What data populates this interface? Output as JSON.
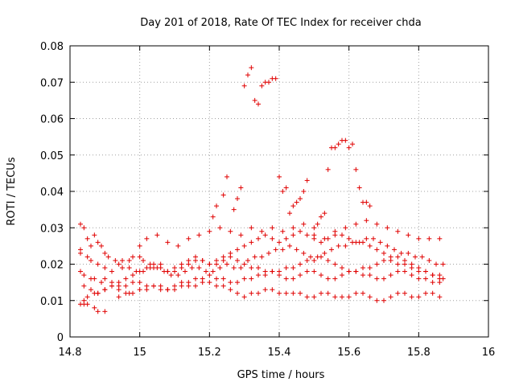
{
  "chart_data": {
    "type": "scatter",
    "title": "Day 201 of 2018, Rate Of TEC Index for receiver chda",
    "xlabel": "GPS time / hours",
    "ylabel": "ROTI / TECUs",
    "xlim": [
      14.8,
      16
    ],
    "ylim": [
      0,
      0.08
    ],
    "xticks": [
      "14.8",
      "15",
      "15.2",
      "15.4",
      "15.6",
      "15.8",
      "16"
    ],
    "yticks": [
      "0",
      "0.01",
      "0.02",
      "0.03",
      "0.04",
      "0.05",
      "0.06",
      "0.07",
      "0.08"
    ],
    "grid": true,
    "marker": "plus",
    "color": "#e00000",
    "series": [
      {
        "x": [
          14.83,
          14.83,
          14.84,
          14.85,
          14.86,
          14.87,
          14.88,
          14.89,
          14.9,
          14.91,
          14.93,
          14.94,
          14.95,
          14.97,
          14.98,
          15.0,
          15.01,
          15.03,
          15.04,
          15.06,
          15.08,
          15.1,
          15.12,
          15.14,
          15.16,
          15.18,
          15.2,
          15.22,
          15.24,
          15.26,
          15.28,
          15.3,
          15.32,
          15.34,
          15.36,
          15.38,
          15.4,
          15.42,
          15.44,
          15.46,
          15.48,
          15.5,
          15.52,
          15.54,
          15.56,
          15.58,
          15.6,
          15.62,
          15.64,
          15.66,
          15.68,
          15.7,
          15.72,
          15.74,
          15.76,
          15.78,
          15.8,
          15.82,
          15.84,
          15.86,
          15.87,
          14.83,
          14.84,
          14.86,
          14.87,
          14.89,
          14.9,
          14.92,
          14.94,
          14.96,
          14.98,
          15.0,
          15.02,
          15.04,
          15.06,
          15.08,
          15.1,
          15.12,
          15.14,
          15.16,
          15.18,
          15.2,
          15.22,
          15.24,
          15.26,
          15.28,
          15.3,
          15.32,
          15.34,
          15.36,
          15.38,
          15.4,
          15.42,
          15.44,
          15.46,
          15.48,
          15.5,
          15.52,
          15.54,
          15.56,
          15.58,
          15.6,
          15.62,
          15.64,
          15.66,
          15.68,
          15.7,
          15.72,
          15.74,
          15.76,
          15.78,
          15.8,
          15.82,
          15.84,
          15.86,
          14.83,
          14.84,
          14.85,
          14.87,
          14.88,
          14.9,
          14.92,
          14.94,
          14.96,
          14.98,
          15.0,
          15.02,
          15.04,
          15.06,
          15.08,
          15.1,
          15.12,
          15.14,
          15.16,
          15.18,
          15.2,
          15.22,
          15.24,
          15.26,
          15.28,
          15.3,
          15.32,
          15.34,
          15.36,
          15.38,
          15.4,
          15.42,
          15.44,
          15.46,
          15.48,
          15.5,
          15.52,
          15.54,
          15.56,
          15.58,
          15.6,
          15.62,
          15.64,
          15.66,
          15.68,
          15.7,
          15.72,
          15.74,
          15.76,
          15.78,
          15.8,
          15.82,
          15.84,
          15.86,
          14.83,
          14.85,
          14.86,
          14.88,
          14.9,
          14.92,
          14.95,
          14.97,
          14.99,
          15.01,
          15.03,
          15.05,
          15.07,
          15.09,
          15.11,
          15.13,
          15.15,
          15.17,
          15.19,
          15.21,
          15.23,
          15.25,
          15.27,
          15.29,
          15.31,
          15.33,
          15.35,
          15.37,
          15.39,
          15.41,
          15.43,
          15.45,
          15.47,
          15.49,
          15.51,
          15.53,
          15.55,
          15.57,
          15.59,
          15.61,
          15.63,
          15.65,
          15.67,
          15.69,
          15.71,
          15.73,
          15.75,
          15.77,
          15.79,
          15.81,
          15.83,
          15.85,
          15.87,
          14.84,
          14.86,
          14.88,
          14.9,
          14.92,
          14.94,
          14.96,
          14.98,
          15.0,
          15.02,
          15.04,
          15.06,
          15.08,
          15.1,
          15.12,
          15.14,
          15.16,
          15.18,
          15.2,
          15.22,
          15.24,
          15.26,
          15.28,
          15.3,
          15.32,
          15.34,
          15.36,
          15.38,
          15.4,
          15.42,
          15.44,
          15.46,
          15.48,
          15.5,
          15.52,
          15.54,
          15.56,
          15.58,
          15.6,
          15.62,
          15.64,
          15.66,
          15.68,
          15.7,
          15.72,
          15.74,
          15.76,
          15.78,
          15.8,
          15.82,
          15.84,
          15.86,
          14.84,
          14.85,
          14.87,
          14.88,
          14.9,
          14.94,
          14.97,
          15.0,
          15.02,
          15.05,
          15.08,
          15.11,
          15.14,
          15.17,
          15.2,
          15.23,
          15.26,
          15.29,
          15.32,
          15.35,
          15.38,
          15.41,
          15.44,
          15.47,
          15.5,
          15.53,
          15.56,
          15.59,
          15.62,
          15.65,
          15.68,
          15.71,
          15.74,
          15.77,
          15.8,
          15.83,
          15.86,
          15.21,
          15.22,
          15.24,
          15.25,
          15.27,
          15.28,
          15.29,
          15.3,
          15.31,
          15.32,
          15.33,
          15.34,
          15.35,
          15.36,
          15.37,
          15.38,
          15.39,
          15.4,
          15.41,
          15.42,
          15.43,
          15.44,
          15.45,
          15.46,
          15.47,
          15.48,
          15.5,
          15.51,
          15.52,
          15.53,
          15.54,
          15.55,
          15.56,
          15.57,
          15.58,
          15.59,
          15.6,
          15.61,
          15.62,
          15.63,
          15.64,
          15.65,
          15.66
        ],
        "y": [
          0.031,
          0.024,
          0.03,
          0.027,
          0.025,
          0.028,
          0.026,
          0.025,
          0.023,
          0.022,
          0.021,
          0.02,
          0.021,
          0.021,
          0.022,
          0.022,
          0.021,
          0.02,
          0.019,
          0.02,
          0.018,
          0.018,
          0.019,
          0.02,
          0.021,
          0.021,
          0.02,
          0.02,
          0.021,
          0.022,
          0.021,
          0.02,
          0.019,
          0.019,
          0.018,
          0.018,
          0.018,
          0.019,
          0.019,
          0.02,
          0.021,
          0.021,
          0.022,
          0.021,
          0.02,
          0.019,
          0.018,
          0.018,
          0.019,
          0.019,
          0.02,
          0.021,
          0.021,
          0.02,
          0.02,
          0.019,
          0.018,
          0.018,
          0.017,
          0.017,
          0.016,
          0.018,
          0.017,
          0.016,
          0.016,
          0.015,
          0.016,
          0.015,
          0.014,
          0.014,
          0.015,
          0.015,
          0.014,
          0.014,
          0.013,
          0.013,
          0.014,
          0.015,
          0.015,
          0.016,
          0.016,
          0.017,
          0.016,
          0.016,
          0.015,
          0.015,
          0.016,
          0.016,
          0.017,
          0.017,
          0.018,
          0.017,
          0.016,
          0.016,
          0.017,
          0.018,
          0.018,
          0.017,
          0.016,
          0.016,
          0.017,
          0.018,
          0.018,
          0.017,
          0.017,
          0.016,
          0.016,
          0.017,
          0.018,
          0.018,
          0.017,
          0.016,
          0.016,
          0.015,
          0.015,
          0.009,
          0.01,
          0.011,
          0.012,
          0.012,
          0.013,
          0.014,
          0.013,
          0.012,
          0.012,
          0.013,
          0.013,
          0.014,
          0.014,
          0.013,
          0.013,
          0.014,
          0.014,
          0.014,
          0.015,
          0.015,
          0.014,
          0.014,
          0.013,
          0.012,
          0.011,
          0.012,
          0.012,
          0.013,
          0.013,
          0.012,
          0.012,
          0.012,
          0.012,
          0.011,
          0.011,
          0.012,
          0.012,
          0.011,
          0.011,
          0.011,
          0.012,
          0.012,
          0.011,
          0.01,
          0.01,
          0.011,
          0.012,
          0.012,
          0.011,
          0.011,
          0.012,
          0.012,
          0.011,
          0.023,
          0.022,
          0.021,
          0.02,
          0.019,
          0.018,
          0.019,
          0.019,
          0.018,
          0.018,
          0.019,
          0.019,
          0.018,
          0.017,
          0.017,
          0.018,
          0.019,
          0.019,
          0.018,
          0.018,
          0.019,
          0.02,
          0.019,
          0.019,
          0.021,
          0.022,
          0.022,
          0.023,
          0.024,
          0.024,
          0.025,
          0.024,
          0.023,
          0.022,
          0.022,
          0.023,
          0.024,
          0.025,
          0.025,
          0.026,
          0.026,
          0.027,
          0.027,
          0.026,
          0.025,
          0.024,
          0.023,
          0.023,
          0.022,
          0.022,
          0.021,
          0.02,
          0.02,
          0.014,
          0.013,
          0.012,
          0.013,
          0.014,
          0.015,
          0.016,
          0.017,
          0.018,
          0.019,
          0.02,
          0.019,
          0.018,
          0.019,
          0.02,
          0.021,
          0.022,
          0.021,
          0.02,
          0.021,
          0.022,
          0.023,
          0.024,
          0.025,
          0.026,
          0.027,
          0.028,
          0.027,
          0.026,
          0.027,
          0.028,
          0.029,
          0.028,
          0.027,
          0.026,
          0.027,
          0.028,
          0.028,
          0.027,
          0.026,
          0.026,
          0.025,
          0.024,
          0.023,
          0.022,
          0.022,
          0.021,
          0.02,
          0.019,
          0.018,
          0.017,
          0.016,
          0.009,
          0.009,
          0.008,
          0.007,
          0.007,
          0.011,
          0.012,
          0.025,
          0.027,
          0.028,
          0.026,
          0.025,
          0.027,
          0.028,
          0.029,
          0.03,
          0.029,
          0.028,
          0.03,
          0.029,
          0.03,
          0.029,
          0.03,
          0.031,
          0.028,
          0.027,
          0.029,
          0.03,
          0.031,
          0.032,
          0.031,
          0.03,
          0.029,
          0.028,
          0.027,
          0.027,
          0.027,
          0.033,
          0.036,
          0.039,
          0.044,
          0.035,
          0.038,
          0.041,
          0.069,
          0.072,
          0.074,
          0.065,
          0.064,
          0.069,
          0.07,
          0.07,
          0.071,
          0.071,
          0.044,
          0.04,
          0.041,
          0.034,
          0.036,
          0.037,
          0.038,
          0.04,
          0.043,
          0.03,
          0.031,
          0.033,
          0.034,
          0.046,
          0.052,
          0.052,
          0.053,
          0.054,
          0.054,
          0.052,
          0.053,
          0.046,
          0.041,
          0.037,
          0.037,
          0.036
        ]
      }
    ]
  }
}
